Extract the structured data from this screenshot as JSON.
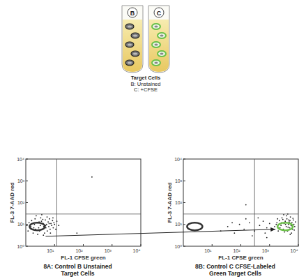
{
  "illustration": {
    "tube_labels": [
      "B",
      "C"
    ],
    "caption": [
      "Target Cells",
      "B: Unstained",
      "C: +CFSE"
    ]
  },
  "chart_data": [
    {
      "type": "scatter",
      "title": "8A: Control B Unstained",
      "subtitle": "Target Cells",
      "x_label": "FL-1 CFSE green",
      "y_label": "FL-3 7-AAD red",
      "log": true,
      "grid": false,
      "marker": "dot",
      "color": "#222222",
      "xlim": [
        1,
        10000
      ],
      "ylim": [
        1,
        10000
      ],
      "xticks": [
        {
          "value": 10,
          "label": "10¹"
        },
        {
          "value": 100,
          "label": "10²"
        },
        {
          "value": 1000,
          "label": "10³"
        },
        {
          "value": 10000,
          "label": "10⁴"
        }
      ],
      "yticks": [
        {
          "value": 1,
          "label": "10⁰"
        },
        {
          "value": 10,
          "label": "10¹"
        },
        {
          "value": 100,
          "label": "10²"
        },
        {
          "value": 1000,
          "label": "10³"
        },
        {
          "value": 10000,
          "label": "10⁴"
        }
      ],
      "quadrant_lines": {
        "x": 12,
        "y": 30
      },
      "circles": [
        {
          "x": 2.5,
          "y": 8,
          "color": "#333333"
        }
      ],
      "x": [
        1.2,
        1.5,
        1.8,
        2,
        2.2,
        2.5,
        2.8,
        3,
        3.2,
        3.5,
        3.8,
        4,
        4.2,
        4.5,
        4.8,
        5,
        5.3,
        5.6,
        6,
        6.3,
        6.7,
        7,
        7.5,
        8,
        8.5,
        9,
        9.5,
        1.3,
        1.6,
        2.1,
        2.6,
        3.3,
        4.1,
        5.5,
        7.2,
        8.8,
        1.1,
        1.9,
        2.9,
        3.9,
        4.9,
        6.5,
        10,
        11,
        2.3,
        3.6,
        12,
        14,
        60,
        200
      ],
      "values": [
        5,
        8,
        4,
        10,
        6,
        12,
        7,
        5,
        9,
        14,
        6,
        11,
        8,
        4,
        16,
        7,
        10,
        5,
        13,
        8,
        18,
        6,
        11,
        9,
        15,
        7,
        12,
        12,
        15,
        18,
        3.5,
        20,
        3.2,
        22,
        4,
        20,
        9,
        7,
        13,
        17,
        9,
        11,
        10,
        6,
        25,
        28,
        14,
        9,
        4,
        1500
      ]
    },
    {
      "type": "scatter",
      "title": "8B: Control C CFSE-Labeled",
      "subtitle": "Green Target Cells",
      "x_label": "FL-1 CFSE green",
      "y_label": "FL-3 7-AAD red",
      "log": true,
      "grid": false,
      "marker": "dot",
      "color": "#222222",
      "xlim": [
        1,
        10000
      ],
      "ylim": [
        1,
        10000
      ],
      "xticks": [
        {
          "value": 10,
          "label": "10¹"
        },
        {
          "value": 100,
          "label": "10²"
        },
        {
          "value": 1000,
          "label": "10³"
        },
        {
          "value": 10000,
          "label": "10⁴"
        }
      ],
      "yticks": [
        {
          "value": 1,
          "label": "10⁰"
        },
        {
          "value": 10,
          "label": "10¹"
        },
        {
          "value": 100,
          "label": "10²"
        },
        {
          "value": 1000,
          "label": "10³"
        },
        {
          "value": 10000,
          "label": "10⁴"
        }
      ],
      "quadrant_lines": {
        "x": 300,
        "y": 30
      },
      "circles": [
        {
          "x": 2.5,
          "y": 8,
          "color": "#333333"
        },
        {
          "x": 3500,
          "y": 8,
          "color": "#6cc04a"
        }
      ],
      "x": [
        20,
        35,
        60,
        90,
        130,
        200,
        300,
        450,
        600,
        800,
        1000,
        150,
        250,
        700,
        400,
        50,
        1500,
        1800,
        2000,
        2200,
        2500,
        2700,
        3000,
        3200,
        3500,
        3800,
        4000,
        4200,
        4500,
        4800,
        5000,
        5300,
        5600,
        6000,
        6300,
        6700,
        7000,
        7500,
        8000,
        2300,
        2900,
        3300,
        3900,
        4400,
        5100,
        5800,
        6500,
        7200,
        1700,
        2600,
        3600,
        4600,
        5500,
        6100,
        1900,
        3100,
        4300,
        5200,
        800,
        150
      ],
      "values": [
        5,
        8,
        4,
        10,
        6,
        12,
        5,
        9,
        14,
        7,
        11,
        18,
        3,
        4,
        20,
        12,
        8,
        12,
        5,
        15,
        9,
        20,
        6,
        11,
        14,
        8,
        18,
        5,
        10,
        13,
        7,
        22,
        9,
        12,
        6,
        16,
        10,
        8,
        13,
        7,
        17,
        4.5,
        25,
        7.5,
        15,
        4,
        19,
        5.5,
        10,
        12,
        10,
        16,
        11,
        8.5,
        18,
        28,
        30,
        3.5,
        2.5,
        80
      ]
    }
  ]
}
